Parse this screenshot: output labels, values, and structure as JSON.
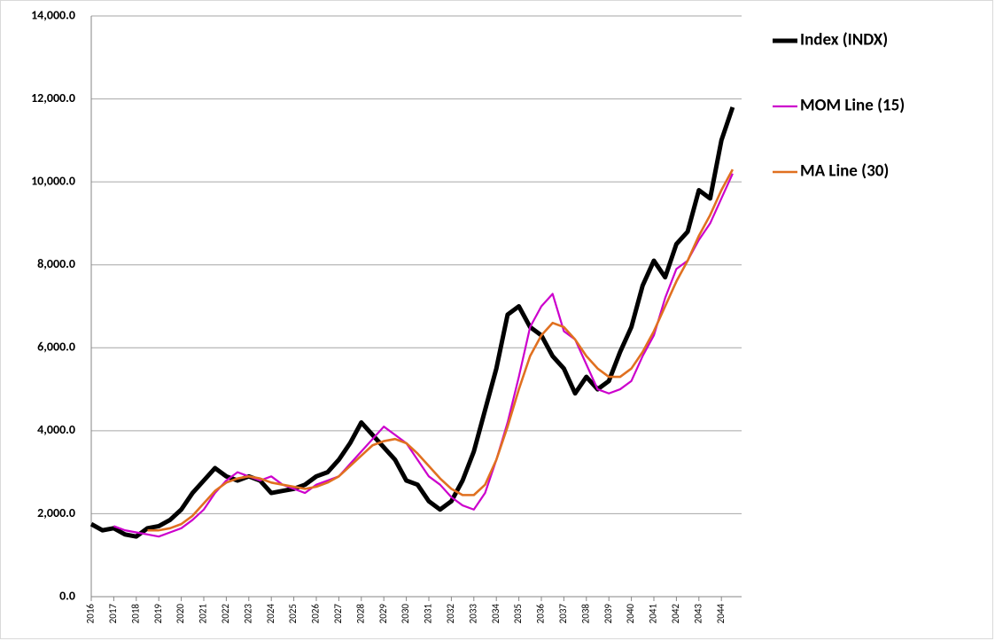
{
  "chart_data": {
    "type": "line",
    "categories": [
      "2016",
      null,
      "2017",
      null,
      "2018",
      null,
      "2019",
      null,
      "2020",
      null,
      "2021",
      null,
      "2022",
      null,
      "2023",
      null,
      "2024",
      null,
      "2025",
      null,
      "2026",
      null,
      "2027",
      null,
      "2028",
      null,
      "2029",
      null,
      "2030",
      null,
      "2031",
      null,
      "2032",
      null,
      "2033",
      null,
      "2034",
      null,
      "2035",
      null,
      "2036",
      null,
      "2037",
      null,
      "2038",
      null,
      "2039",
      null,
      "2040",
      null,
      "2041",
      null,
      "2042",
      null,
      "2043",
      null,
      "2044",
      null
    ],
    "series": [
      {
        "name": "Index (INDX)",
        "color": "#000000",
        "values": [
          1750,
          1600,
          1650,
          1500,
          1450,
          1650,
          1700,
          1850,
          2100,
          2500,
          2800,
          3100,
          2900,
          2800,
          2900,
          2800,
          2500,
          2550,
          2600,
          2700,
          2900,
          3000,
          3300,
          3700,
          4200,
          3900,
          3600,
          3300,
          2800,
          2700,
          2300,
          2100,
          2300,
          2800,
          3500,
          4500,
          5500,
          6800,
          7000,
          6500,
          6300,
          5800,
          5500,
          4900,
          5300,
          5000,
          5200,
          5900,
          6500,
          7500,
          8100,
          7700,
          8500,
          8800,
          9800,
          9600,
          11000,
          11800
        ]
      },
      {
        "name": "MOM Line (15)",
        "color": "#cc00cc",
        "values": [
          null,
          null,
          1700,
          1600,
          1550,
          1500,
          1450,
          1550,
          1650,
          1850,
          2100,
          2500,
          2800,
          3000,
          2900,
          2800,
          2900,
          2700,
          2600,
          2500,
          2700,
          2800,
          2900,
          3200,
          3500,
          3800,
          4100,
          3900,
          3700,
          3300,
          2900,
          2700,
          2400,
          2200,
          2100,
          2500,
          3300,
          4200,
          5300,
          6500,
          7000,
          7300,
          6400,
          6200,
          5600,
          5000,
          4900,
          5000,
          5200,
          5800,
          6300,
          7200,
          7900,
          8100,
          8600,
          9000,
          9600,
          10200
        ]
      },
      {
        "name": "MA Line (30)",
        "color": "#e07020",
        "values": [
          null,
          null,
          null,
          null,
          null,
          1600,
          1600,
          1650,
          1750,
          1950,
          2250,
          2550,
          2750,
          2850,
          2900,
          2850,
          2750,
          2700,
          2650,
          2600,
          2650,
          2750,
          2900,
          3150,
          3400,
          3650,
          3750,
          3800,
          3700,
          3450,
          3150,
          2850,
          2600,
          2450,
          2450,
          2700,
          3300,
          4100,
          5000,
          5800,
          6300,
          6600,
          6500,
          6200,
          5800,
          5500,
          5300,
          5300,
          5500,
          5900,
          6400,
          7000,
          7600,
          8100,
          8700,
          9200,
          9800,
          10300
        ]
      }
    ],
    "ylim": [
      0,
      14000
    ],
    "yticks": [
      {
        "value": 0,
        "label": "0.0"
      },
      {
        "value": 2000,
        "label": "2,000.0"
      },
      {
        "value": 4000,
        "label": "4,000.0"
      },
      {
        "value": 6000,
        "label": "6,000.0"
      },
      {
        "value": 8000,
        "label": "8,000.0"
      },
      {
        "value": 10000,
        "label": "10,000.0"
      },
      {
        "value": 12000,
        "label": "12,000.0"
      },
      {
        "value": 14000,
        "label": "14,000.0"
      }
    ],
    "grid": true,
    "legend": "right"
  }
}
